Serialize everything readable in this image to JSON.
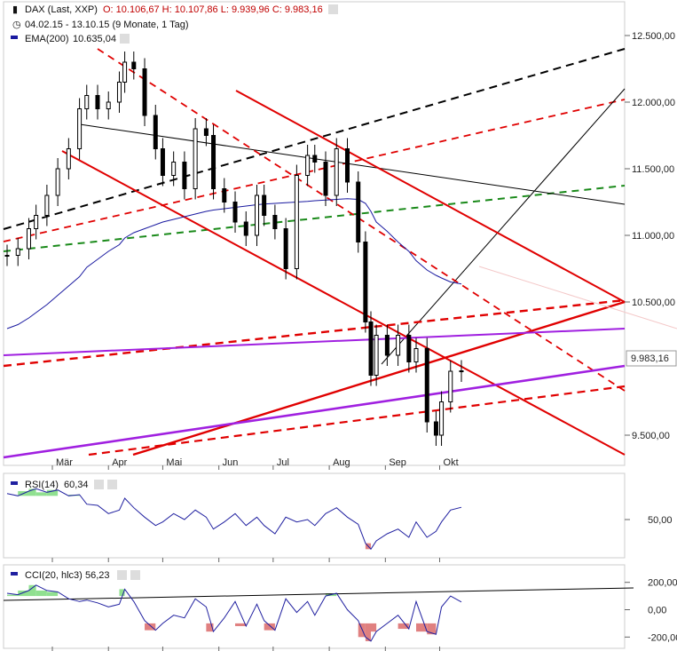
{
  "header": {
    "instrument": "DAX (Last, XXP)",
    "ohlc": "O: 10.106,67  H: 10.107,86  L: 9.939,96  C: 9.983,16",
    "range": "04.02.15 - 13.10.15 (9 Monate, 1 Tag)",
    "ema_label": "EMA(200)",
    "ema_value": "10.635,04",
    "price_badge": "9.983,16"
  },
  "rsi_panel": {
    "label": "RSI(14)",
    "value": "60,34"
  },
  "cci_panel": {
    "label": "CCI(20, hlc3)",
    "value": "56,23"
  },
  "colors": {
    "candle": "#000000",
    "ema": "#1a1aa0",
    "trend_red": "#e00000",
    "trend_purple": "#a020e0",
    "trend_green": "#1a8a1a",
    "trend_black": "#000000",
    "oscillator": "#2020a0",
    "overbought_fill": "#90e090",
    "oversold_fill": "#e08080"
  },
  "chart_data": [
    {
      "type": "candlestick",
      "x_tick_labels": [
        "Mär",
        "Apr",
        "Mai",
        "Jun",
        "Jul",
        "Aug",
        "Sep",
        "Okt"
      ],
      "y_tick_labels": [
        "12.500,00",
        "12.000,00",
        "11.500,00",
        "11.000,00",
        "10.500,00",
        "9.500,00"
      ],
      "ylim": [
        9300,
        12700
      ],
      "x": [
        "2015-02-04",
        "2015-02-10",
        "2015-02-16",
        "2015-02-20",
        "2015-02-26",
        "2015-03-04",
        "2015-03-10",
        "2015-03-16",
        "2015-03-20",
        "2015-03-26",
        "2015-04-01",
        "2015-04-07",
        "2015-04-10",
        "2015-04-15",
        "2015-04-21",
        "2015-04-27",
        "2015-05-01",
        "2015-05-07",
        "2015-05-13",
        "2015-05-19",
        "2015-05-25",
        "2015-05-29",
        "2015-06-04",
        "2015-06-10",
        "2015-06-16",
        "2015-06-22",
        "2015-06-26",
        "2015-07-02",
        "2015-07-08",
        "2015-07-14",
        "2015-07-20",
        "2015-07-24",
        "2015-07-30",
        "2015-08-05",
        "2015-08-11",
        "2015-08-17",
        "2015-08-21",
        "2015-08-24",
        "2015-08-27",
        "2015-09-02",
        "2015-09-08",
        "2015-09-14",
        "2015-09-18",
        "2015-09-24",
        "2015-09-29",
        "2015-10-02",
        "2015-10-07",
        "2015-10-13"
      ],
      "close": [
        10850,
        10900,
        11050,
        11150,
        11300,
        11500,
        11650,
        11950,
        12050,
        11950,
        12000,
        12150,
        12300,
        12250,
        11900,
        11650,
        11450,
        11550,
        11350,
        11800,
        11750,
        11350,
        11250,
        11100,
        11000,
        11300,
        11150,
        11050,
        10750,
        11450,
        11600,
        11550,
        11300,
        11650,
        11400,
        10950,
        10350,
        9950,
        10250,
        10100,
        10250,
        10050,
        10150,
        9600,
        9500,
        9750,
        9980,
        9983
      ],
      "ema_200": [
        10300,
        10330,
        10380,
        10420,
        10480,
        10550,
        10620,
        10690,
        10760,
        10820,
        10880,
        10930,
        10980,
        11020,
        11050,
        11080,
        11100,
        11120,
        11140,
        11160,
        11180,
        11190,
        11200,
        11210,
        11220,
        11230,
        11235,
        11240,
        11245,
        11250,
        11255,
        11260,
        11265,
        11270,
        11275,
        11270,
        11240,
        11180,
        11100,
        11030,
        10950,
        10880,
        10810,
        10740,
        10700,
        10680,
        10650,
        10635
      ],
      "trendlines": [
        "red-channel-upper",
        "red-channel-lower",
        "red-support-rising",
        "purple-support",
        "purple-resistance",
        "green-dashed",
        "black-dashed",
        "black-fan"
      ]
    },
    {
      "type": "line",
      "label": "RSI(14)",
      "y_tick_labels": [
        "50,00"
      ],
      "ylim": [
        20,
        80
      ],
      "values": [
        72,
        70,
        74,
        76,
        73,
        75,
        70,
        71,
        63,
        62,
        55,
        58,
        68,
        60,
        52,
        45,
        48,
        55,
        50,
        58,
        52,
        42,
        48,
        55,
        45,
        52,
        45,
        38,
        52,
        48,
        50,
        45,
        55,
        60,
        52,
        46,
        30,
        25,
        32,
        38,
        42,
        35,
        48,
        35,
        40,
        48,
        58,
        60.34
      ]
    },
    {
      "type": "line",
      "label": "CCI(20, hlc3)",
      "y_tick_labels": [
        "200,00",
        "0,00",
        "-200,00"
      ],
      "ylim": [
        -250,
        250
      ],
      "values": [
        120,
        110,
        140,
        180,
        140,
        130,
        80,
        60,
        70,
        50,
        20,
        40,
        150,
        60,
        -80,
        -150,
        -100,
        -40,
        -60,
        80,
        20,
        -160,
        -60,
        60,
        -120,
        40,
        -80,
        -150,
        80,
        -20,
        60,
        -40,
        100,
        120,
        0,
        -80,
        -200,
        -230,
        -160,
        -100,
        -40,
        -140,
        60,
        -160,
        -180,
        20,
        100,
        56.23
      ]
    }
  ]
}
